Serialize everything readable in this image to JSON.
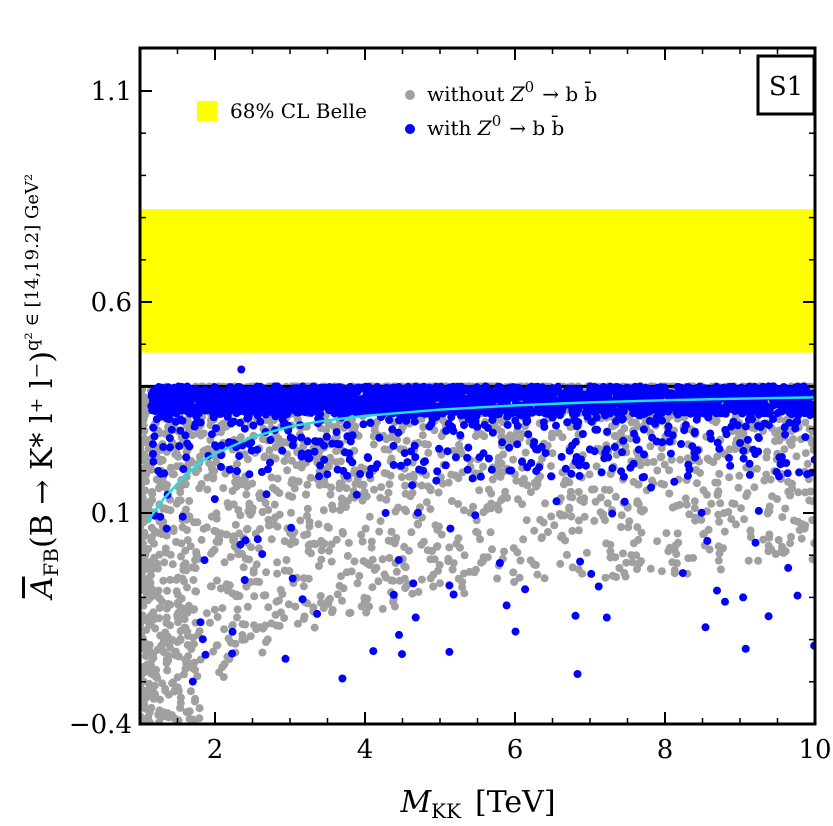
{
  "chart_data": {
    "type": "scatter",
    "title": "",
    "tag": "S1",
    "xlabel_main": "M",
    "xlabel_sub": "KK",
    "xlabel_unit": "[TeV]",
    "ylabel_main": "A",
    "ylabel_sub": "FB",
    "ylabel_body": "(B → K* l⁺ l⁻)",
    "ylabel_sup": "q² ∈ [14,19.2] GeV²",
    "xlim": [
      1,
      10
    ],
    "ylim": [
      -0.4,
      1.25
    ],
    "x_ticks": [
      2,
      4,
      6,
      8,
      10
    ],
    "x_tick_labels": [
      "2",
      "4",
      "6",
      "8",
      "10"
    ],
    "y_ticks": [
      -0.4,
      0.1,
      0.6,
      1.1
    ],
    "y_tick_labels": [
      "−0.4",
      "0.1",
      "0.6",
      "1.1"
    ],
    "band": {
      "name": "68% CL Belle",
      "ymin": 0.48,
      "ymax": 0.82,
      "color": "#ffff00"
    },
    "reference_line": {
      "y": 0.4,
      "color": "#000000"
    },
    "series": [
      {
        "name": "without Z⁰ → b b̄",
        "legend_label": "without",
        "legend_z": "Z",
        "legend_z_sup": "0",
        "legend_decay": "→  b b̄",
        "color": "#a0a0a0",
        "density": "dense, spread from about -0.4 up to 0.4, concentrated near the upper edge and at small M_KK"
      },
      {
        "name": "with Z⁰ → b b̄",
        "legend_label": "with",
        "legend_z": "Z",
        "legend_z_sup": "0",
        "legend_decay": "→  b b̄",
        "color": "#0000ff",
        "density": "dense band between about 0.27 and 0.4, with sparse tail down to about -0.3"
      }
    ],
    "fit_curve": {
      "name": "fit curve",
      "color": "#20e0e0",
      "x": [
        1.1,
        1.3,
        1.5,
        1.8,
        2.0,
        2.5,
        3.0,
        3.5,
        4.0,
        5.0,
        6.0,
        7.0,
        8.0,
        9.0,
        10.0
      ],
      "y": [
        0.08,
        0.13,
        0.17,
        0.22,
        0.24,
        0.28,
        0.305,
        0.32,
        0.33,
        0.345,
        0.355,
        0.362,
        0.367,
        0.371,
        0.374
      ]
    }
  }
}
